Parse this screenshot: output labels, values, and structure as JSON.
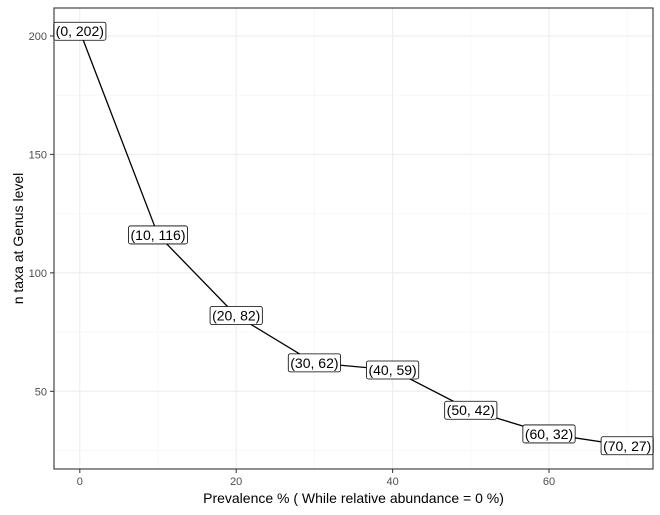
{
  "chart_data": {
    "type": "line",
    "xlabel": "Prevalence % ( While relative abundance = 0 %)",
    "ylabel": "n taxa at Genus level",
    "x": [
      0,
      10,
      20,
      30,
      40,
      50,
      60,
      70
    ],
    "y": [
      202,
      116,
      82,
      62,
      59,
      42,
      32,
      27
    ],
    "point_labels": [
      "(0, 202)",
      "(10, 116)",
      "(20, 82)",
      "(30, 62)",
      "(40, 59)",
      "(50, 42)",
      "(60, 32)",
      "(70, 27)"
    ],
    "xlim": [
      -3.3,
      73.3
    ],
    "ylim": [
      17.2,
      211.8
    ],
    "x_ticks": [
      0,
      20,
      40,
      60
    ],
    "x_tick_labels": [
      "0",
      "20",
      "40",
      "60"
    ],
    "y_ticks": [
      50,
      100,
      150,
      200
    ],
    "y_tick_labels": [
      "50",
      "100",
      "150",
      "200"
    ],
    "grid": true,
    "legend": "none",
    "colors": {
      "line": "#000000",
      "grid": "#ebebeb",
      "panel_border": "#333333",
      "background": "#ffffff"
    }
  }
}
